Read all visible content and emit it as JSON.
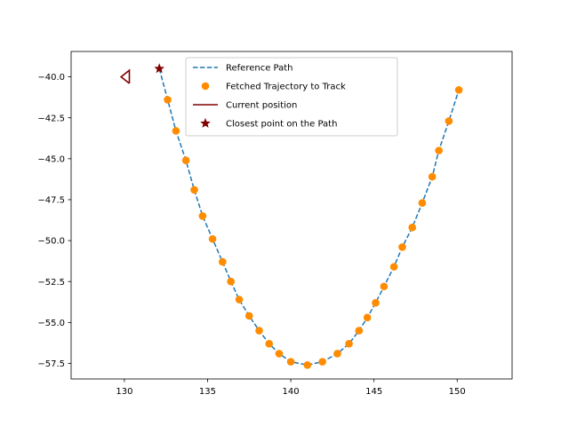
{
  "chart_data": {
    "type": "line",
    "title": "",
    "xlabel": "",
    "ylabel": "",
    "xlim": [
      126.8,
      153.3
    ],
    "ylim": [
      -58.45,
      -38.45
    ],
    "xticks": [
      {
        "value": 130,
        "label": "130"
      },
      {
        "value": 135,
        "label": "135"
      },
      {
        "value": 140,
        "label": "140"
      },
      {
        "value": 145,
        "label": "145"
      },
      {
        "value": 150,
        "label": "150"
      }
    ],
    "yticks": [
      {
        "value": -40.0,
        "label": "−40.0"
      },
      {
        "value": -42.5,
        "label": "−42.5"
      },
      {
        "value": -45.0,
        "label": "−45.0"
      },
      {
        "value": -47.5,
        "label": "−47.5"
      },
      {
        "value": -50.0,
        "label": "−50.0"
      },
      {
        "value": -52.5,
        "label": "−52.5"
      },
      {
        "value": -55.0,
        "label": "−55.0"
      },
      {
        "value": -57.5,
        "label": "−57.5"
      }
    ],
    "grid": false,
    "legend_position": "top-center",
    "series": [
      {
        "name": "Reference Path",
        "style": "dashed-line",
        "color": "#1f77b4",
        "x": [
          132.1,
          132.6,
          133.1,
          133.7,
          134.2,
          134.7,
          135.3,
          135.9,
          136.4,
          136.9,
          137.5,
          138.1,
          138.7,
          139.3,
          140.0,
          141.0,
          141.9,
          142.8,
          143.5,
          144.1,
          144.6,
          145.1,
          145.6,
          146.2,
          146.7,
          147.3,
          147.9,
          148.5,
          148.9,
          149.5,
          150.1
        ],
        "y": [
          -39.5,
          -41.4,
          -43.3,
          -45.1,
          -46.9,
          -48.5,
          -49.9,
          -51.3,
          -52.5,
          -53.6,
          -54.6,
          -55.5,
          -56.3,
          -56.9,
          -57.4,
          -57.6,
          -57.4,
          -56.9,
          -56.3,
          -55.5,
          -54.7,
          -53.8,
          -52.8,
          -51.6,
          -50.4,
          -49.2,
          -47.7,
          -46.1,
          -44.5,
          -42.7,
          -40.8
        ]
      },
      {
        "name": "Fetched Trajectory to Track",
        "style": "markers-circle",
        "color": "#ff8c00",
        "x": [
          132.6,
          133.1,
          133.7,
          134.2,
          134.7,
          135.3,
          135.9,
          136.4,
          136.9,
          137.5,
          138.1,
          138.7,
          139.3,
          140.0,
          141.0,
          141.9,
          142.8,
          143.5,
          144.1,
          144.6,
          145.1,
          145.6,
          146.2,
          146.7,
          147.3,
          147.9,
          148.5,
          148.9,
          149.5,
          150.1
        ],
        "y": [
          -41.4,
          -43.3,
          -45.1,
          -46.9,
          -48.5,
          -49.9,
          -51.3,
          -52.5,
          -53.6,
          -54.6,
          -55.5,
          -56.3,
          -56.9,
          -57.4,
          -57.6,
          -57.4,
          -56.9,
          -56.3,
          -55.5,
          -54.7,
          -53.8,
          -52.8,
          -51.6,
          -50.4,
          -49.2,
          -47.7,
          -46.1,
          -44.5,
          -42.7,
          -40.8
        ]
      },
      {
        "name": "Current position",
        "style": "solid-line",
        "color": "#800000",
        "vertices_x": [
          130.3,
          130.3,
          129.8,
          130.3
        ],
        "vertices_y": [
          -40.4,
          -39.6,
          -40.0,
          -40.4
        ]
      },
      {
        "name": "Closest point on the Path",
        "style": "marker-star",
        "color": "#800000",
        "x": [
          132.1
        ],
        "y": [
          -39.5
        ]
      }
    ]
  }
}
